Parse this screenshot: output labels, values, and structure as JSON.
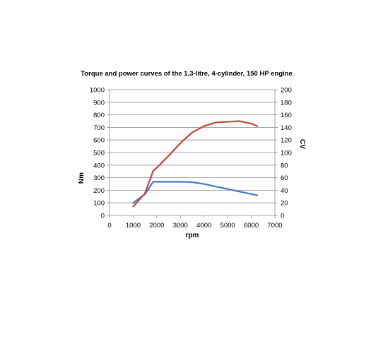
{
  "chart_data": {
    "type": "line",
    "title": "Torque and power curves of the 1.3-litre, 4-cylinder, 150 HP engine",
    "xlabel": "rpm",
    "ylabel": "Nm",
    "y2label": "CV",
    "xlim": [
      0,
      7000
    ],
    "ylim": [
      0,
      1000
    ],
    "y2lim": [
      0,
      200
    ],
    "xticks": [
      "0",
      "1000",
      "2000",
      "3000",
      "4000",
      "5000",
      "6000",
      "7000"
    ],
    "yticks": [
      "0",
      "100",
      "200",
      "300",
      "400",
      "500",
      "600",
      "700",
      "800",
      "900",
      "1000"
    ],
    "y2ticks": [
      "0",
      "20",
      "40",
      "60",
      "80",
      "100",
      "120",
      "140",
      "160",
      "180",
      "200"
    ],
    "grid": true,
    "legend": "none",
    "colors": {
      "torque": "#4a7ebb",
      "power": "#be4b48",
      "grid": "#8c8c8c",
      "axis": "#8c8c8c"
    },
    "series": [
      {
        "axis": "left",
        "color": "#4a7ebb",
        "points": [
          [
            1000,
            100
          ],
          [
            1500,
            168
          ],
          [
            1850,
            268
          ],
          [
            2000,
            268
          ],
          [
            2500,
            268
          ],
          [
            3000,
            268
          ],
          [
            3500,
            264
          ],
          [
            4000,
            250
          ],
          [
            4500,
            230
          ],
          [
            5000,
            210
          ],
          [
            5500,
            190
          ],
          [
            6000,
            170
          ],
          [
            6250,
            160
          ]
        ]
      },
      {
        "axis": "right",
        "color": "#be4b48",
        "points": [
          [
            1000,
            14
          ],
          [
            1500,
            35
          ],
          [
            1850,
            71
          ],
          [
            2000,
            76
          ],
          [
            2500,
            95
          ],
          [
            3000,
            115
          ],
          [
            3500,
            132
          ],
          [
            4000,
            142
          ],
          [
            4500,
            148
          ],
          [
            5000,
            149
          ],
          [
            5500,
            150
          ],
          [
            6000,
            146
          ],
          [
            6250,
            142
          ]
        ]
      }
    ]
  }
}
